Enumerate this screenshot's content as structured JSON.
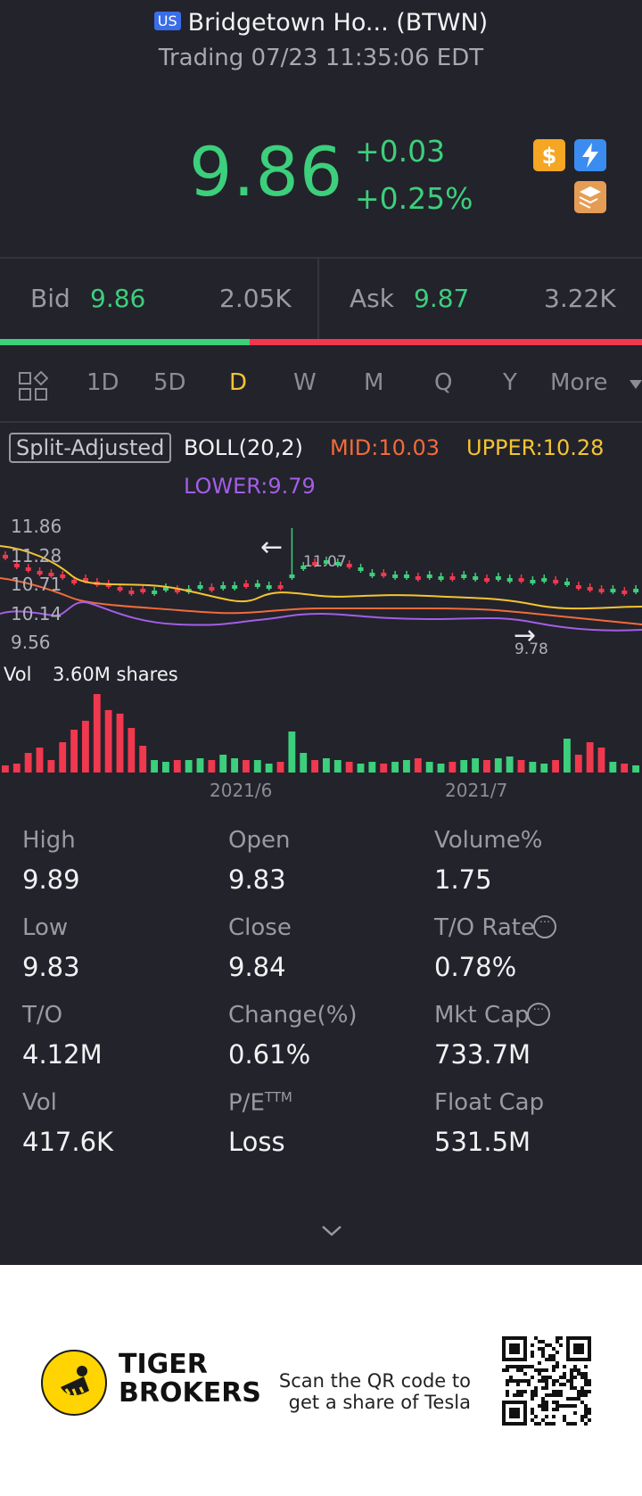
{
  "header": {
    "market_badge": "US",
    "title": "Bridgetown Ho... (BTWN)",
    "status": "Trading 07/23 11:35:06 EDT"
  },
  "quote": {
    "price": "9.86",
    "change": "+0.03",
    "change_pct": "+0.25%"
  },
  "icons": [
    "dollar-icon",
    "flash-icon",
    "layers-icon"
  ],
  "bid_ask": {
    "bid_label": "Bid",
    "bid_price": "9.86",
    "bid_size": "2.05K",
    "ask_label": "Ask",
    "ask_price": "9.87",
    "ask_size": "3.22K",
    "bid_fraction": 0.39
  },
  "tabs": {
    "items": [
      "1D",
      "5D",
      "D",
      "W",
      "M",
      "Q",
      "Y",
      "More"
    ],
    "active": "D"
  },
  "indicator": {
    "split_label": "Split-Adjusted",
    "boll": "BOLL(20,2)",
    "mid": "MID:10.03",
    "upper": "UPPER:10.28",
    "lower": "LOWER:9.79"
  },
  "price_chart": {
    "y_labels": [
      "11.86",
      "11.28",
      "10.71",
      "10.14",
      "9.56"
    ],
    "high_marker": "11.07",
    "low_marker": "9.78"
  },
  "volume": {
    "label": "Vol",
    "value": "3.60M shares",
    "x_labels": [
      "2021/6",
      "2021/7"
    ]
  },
  "stats": [
    {
      "label": "High",
      "value": "9.89"
    },
    {
      "label": "Open",
      "value": "9.83"
    },
    {
      "label": "Volume%",
      "value": "1.75"
    },
    {
      "label": "Low",
      "value": "9.83"
    },
    {
      "label": "Close",
      "value": "9.84"
    },
    {
      "label": "T/O Rate",
      "value": "0.78%"
    },
    {
      "label": "T/O",
      "value": "4.12M"
    },
    {
      "label": "Change(%)",
      "value": "0.61%"
    },
    {
      "label": "Mkt Cap",
      "value": "733.7M"
    },
    {
      "label": "Vol",
      "value": "417.6K"
    },
    {
      "label": "P/E",
      "value": "Loss"
    },
    {
      "label": "Float Cap",
      "value": "531.5M"
    }
  ],
  "pe_superscript": "TTM",
  "footer": {
    "brand_line1": "TIGER",
    "brand_line2": "BROKERS",
    "promo_line1": "Scan the QR code to",
    "promo_line2": "get a share of Tesla"
  },
  "colors": {
    "background": "#23232b",
    "up": "#3ccf7c",
    "down": "#f0384e",
    "active_tab": "#f4c431",
    "boll_mid": "#f26b3a",
    "boll_upper": "#f4c431",
    "boll_lower": "#a35ee8"
  }
}
